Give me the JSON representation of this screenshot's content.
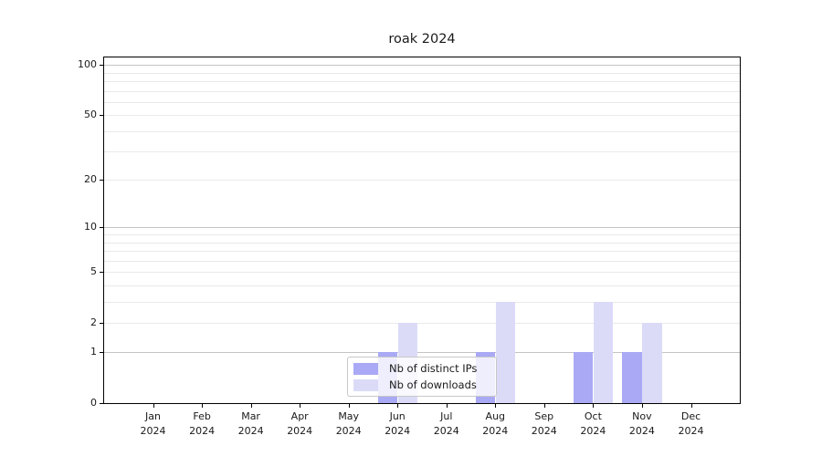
{
  "figure": {
    "background": "#ffffff"
  },
  "chart_data": {
    "type": "bar",
    "title": "roak 2024",
    "xlabel": "",
    "ylabel": "",
    "categories": [
      "Jan",
      "Feb",
      "Mar",
      "Apr",
      "May",
      "Jun",
      "Jul",
      "Aug",
      "Sep",
      "Oct",
      "Nov",
      "Dec"
    ],
    "category_year_line": "2024",
    "series": [
      {
        "name": "Nb of distinct IPs",
        "color": "#a9a9f5",
        "values": [
          0,
          0,
          0,
          0,
          0,
          1,
          0,
          1,
          0,
          1,
          1,
          0
        ]
      },
      {
        "name": "Nb of downloads",
        "color": "#dbdbf8",
        "values": [
          0,
          0,
          0,
          0,
          0,
          2,
          0,
          3,
          0,
          3,
          2,
          0
        ]
      }
    ],
    "y_scale": "log(value+1)",
    "ylim": [
      0,
      112
    ],
    "y_ticks": [
      0,
      1,
      2,
      5,
      10,
      20,
      50,
      100
    ],
    "y_major_gridlines": [
      1,
      10,
      100
    ],
    "y_minor_gridlines": [
      2,
      3,
      4,
      5,
      6,
      7,
      8,
      9,
      20,
      30,
      40,
      50,
      60,
      70,
      80,
      90
    ],
    "grid": "horizontal on",
    "legend_position": "inside lower-center"
  },
  "colors": {
    "grid_major": "#c4c4c4",
    "grid_minor": "#e9e9e9",
    "spine": "#000000",
    "text": "#1a1a1a",
    "legend_border": "#c8c8c8"
  }
}
